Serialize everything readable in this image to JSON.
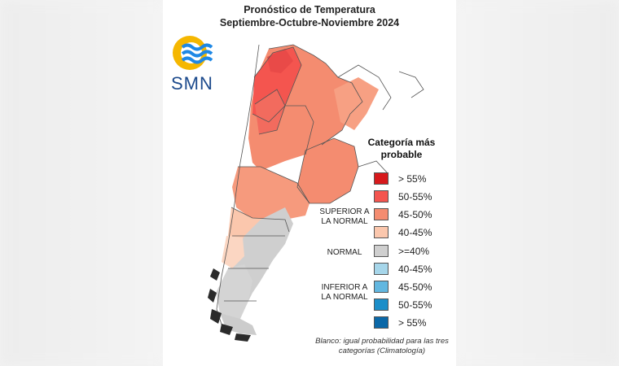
{
  "header": {
    "title": "Pronóstico de Temperatura",
    "period": "Septiembre-Octubre-Noviembre 2024"
  },
  "logo": {
    "text": "SMN",
    "icon": "sun-waves-icon",
    "colors": {
      "sun": "#f5b700",
      "waves": "#1e88e5"
    }
  },
  "legend": {
    "title": "Categoría más probable",
    "items": [
      {
        "label": "> 55%",
        "color": "#d7191c"
      },
      {
        "label": "50-55%",
        "color": "#f4554f"
      },
      {
        "label": "45-50%",
        "color": "#f48c70"
      },
      {
        "label": "40-45%",
        "color": "#fbc7ad"
      },
      {
        "label": ">=40%",
        "color": "#cfcfcf"
      },
      {
        "label": "40-45%",
        "color": "#a6d6ea"
      },
      {
        "label": "45-50%",
        "color": "#62b7e0"
      },
      {
        "label": "50-55%",
        "color": "#1b8ec9"
      },
      {
        "label": "> 55%",
        "color": "#0b68a8"
      }
    ],
    "categories": {
      "superior": "SUPERIOR A LA NORMAL",
      "normal": "NORMAL",
      "inferior": "INFERIOR A LA NORMAL"
    }
  },
  "note": "Blanco: igual probabilidad para las tres categorías (Climatología)"
}
